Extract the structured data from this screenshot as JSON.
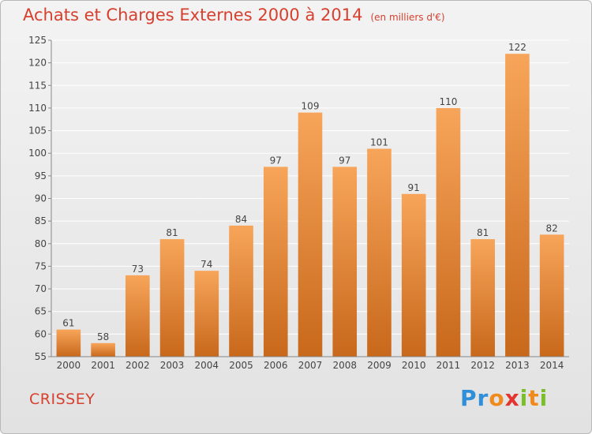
{
  "header": {
    "title": "Achats et Charges Externes 2000 à 2014",
    "unit_note": "(en milliers d'€)"
  },
  "footer": {
    "location": "CRISSEY",
    "logo": {
      "text": "Proxiti",
      "letters": [
        "P",
        "r",
        "o",
        "x",
        "i",
        "t",
        "i"
      ],
      "colors": [
        "#2f8fd8",
        "#2f8fd8",
        "#f08a1c",
        "#e3342f",
        "#7cbd2b",
        "#f08a1c",
        "#7cbd2b"
      ]
    }
  },
  "colors": {
    "bar_top": "#f7a55a",
    "bar_bottom": "#c8681b",
    "axis_text": "#444444",
    "grid": "#ffffff",
    "title": "#d6402e"
  },
  "chart_data": {
    "type": "bar",
    "title": "Achats et Charges Externes 2000 à 2014",
    "categories": [
      "2000",
      "2001",
      "2002",
      "2003",
      "2004",
      "2005",
      "2006",
      "2007",
      "2008",
      "2009",
      "2010",
      "2011",
      "2012",
      "2013",
      "2014"
    ],
    "values": [
      61,
      58,
      73,
      81,
      74,
      84,
      97,
      109,
      97,
      101,
      91,
      110,
      81,
      122,
      82
    ],
    "ylim": [
      55,
      125
    ],
    "yticks": [
      55,
      60,
      65,
      70,
      75,
      80,
      85,
      90,
      95,
      100,
      105,
      110,
      115,
      120,
      125
    ],
    "grid": true,
    "data_labels": true
  }
}
